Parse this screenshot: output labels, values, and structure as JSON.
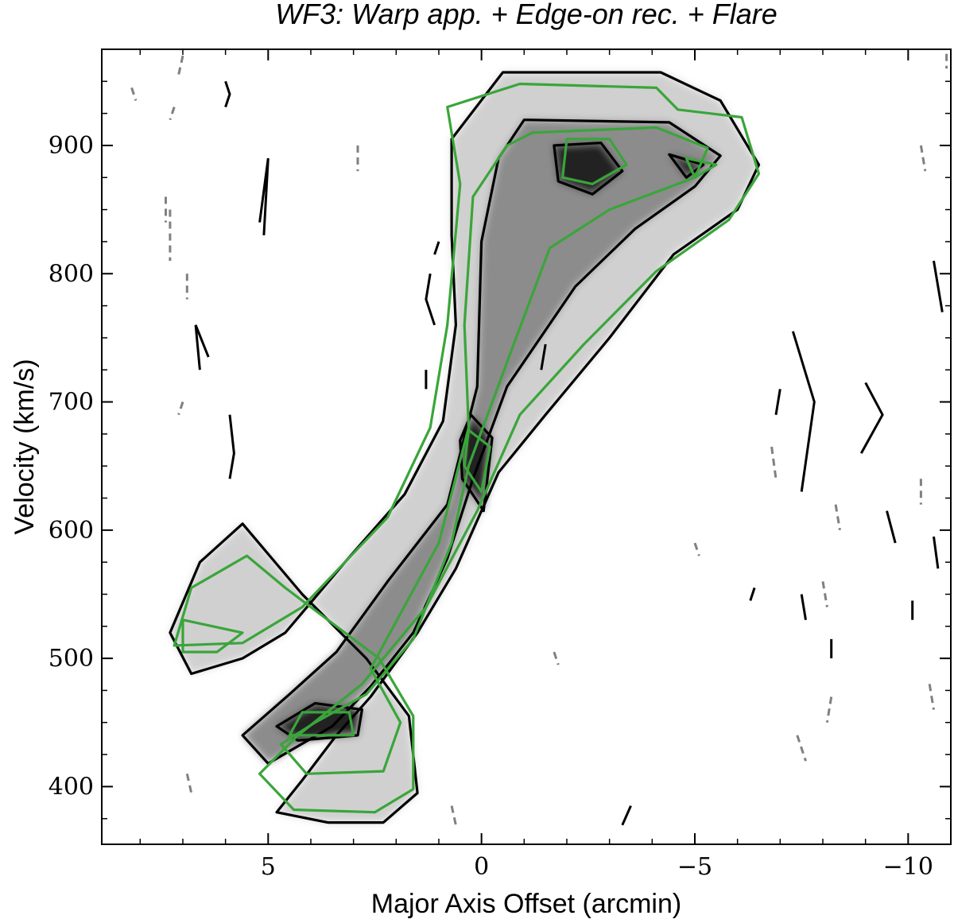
{
  "chart_data": {
    "type": "heatmap",
    "title": "WF3: Warp app. + Edge-on rec. + Flare",
    "xlabel": "Major Axis Offset (arcmin)",
    "ylabel": "Velocity (km/s)",
    "xlim": [
      8.9,
      -11.0
    ],
    "ylim": [
      355,
      975
    ],
    "x_inverted": true,
    "x_major_ticks": [
      5,
      0,
      -5,
      -10
    ],
    "x_tick_labels": [
      "5",
      "0",
      "−5",
      "−10"
    ],
    "x_minor_ticks": [
      8,
      7,
      6,
      4,
      3,
      2,
      1,
      -1,
      -2,
      -3,
      -4,
      -6,
      -7,
      -8,
      -9
    ],
    "y_major_ticks": [
      400,
      500,
      600,
      700,
      800,
      900
    ],
    "y_tick_labels": [
      "400",
      "500",
      "600",
      "700",
      "800",
      "900"
    ],
    "y_minor_ticks": [
      375,
      425,
      450,
      475,
      525,
      550,
      575,
      625,
      650,
      675,
      725,
      750,
      775,
      825,
      850,
      875,
      925,
      950
    ],
    "grid": false,
    "colormap": "greyscale (darker = more emission)",
    "contours": {
      "data_positive": {
        "color": "#000000",
        "style": "solid"
      },
      "data_negative": {
        "color": "#808080",
        "style": "dashed"
      },
      "model": {
        "color": "#3aa53a",
        "style": "solid"
      }
    },
    "data_model_envelope": [
      [
        -0.5,
        957
      ],
      [
        -4.2,
        957
      ],
      [
        -5.6,
        935
      ],
      [
        -6.5,
        885
      ],
      [
        -6.0,
        850
      ],
      [
        -4.5,
        815
      ],
      [
        -3.0,
        750
      ],
      [
        -1.5,
        690
      ],
      [
        -0.4,
        645
      ],
      [
        0.6,
        570
      ],
      [
        1.5,
        520
      ],
      [
        2.6,
        470
      ],
      [
        3.4,
        440
      ],
      [
        4.2,
        405
      ],
      [
        4.8,
        380
      ],
      [
        3.6,
        372
      ],
      [
        2.3,
        372
      ],
      [
        1.5,
        395
      ],
      [
        1.7,
        455
      ],
      [
        2.7,
        500
      ],
      [
        4.2,
        550
      ],
      [
        5.6,
        605
      ],
      [
        6.6,
        575
      ],
      [
        7.3,
        520
      ],
      [
        6.8,
        488
      ],
      [
        5.6,
        500
      ],
      [
        4.6,
        520
      ],
      [
        3.2,
        575
      ],
      [
        1.8,
        628
      ],
      [
        0.9,
        685
      ],
      [
        0.6,
        760
      ],
      [
        0.7,
        830
      ],
      [
        0.7,
        905
      ]
    ],
    "data_model_inner": [
      [
        -1.0,
        920
      ],
      [
        -4.4,
        918
      ],
      [
        -5.6,
        892
      ],
      [
        -5.0,
        868
      ],
      [
        -3.6,
        835
      ],
      [
        -2.2,
        790
      ],
      [
        -0.6,
        712
      ],
      [
        0.2,
        640
      ],
      [
        0.8,
        578
      ],
      [
        1.6,
        520
      ],
      [
        2.6,
        478
      ],
      [
        3.5,
        447
      ],
      [
        5.0,
        418
      ],
      [
        5.6,
        440
      ],
      [
        4.5,
        472
      ],
      [
        3.4,
        505
      ],
      [
        2.2,
        560
      ],
      [
        0.8,
        620
      ],
      [
        0.1,
        712
      ],
      [
        0.0,
        825
      ],
      [
        -0.4,
        890
      ]
    ],
    "data_model_peaks": [
      [
        [
          -1.7,
          900
        ],
        [
          -2.8,
          902
        ],
        [
          -3.3,
          880
        ],
        [
          -2.6,
          862
        ],
        [
          -1.8,
          872
        ]
      ],
      [
        [
          -4.4,
          893
        ],
        [
          -5.2,
          885
        ],
        [
          -4.8,
          875
        ]
      ],
      [
        [
          3.9,
          465
        ],
        [
          2.8,
          460
        ],
        [
          2.9,
          440
        ],
        [
          4.3,
          436
        ],
        [
          4.8,
          447
        ]
      ],
      [
        [
          0.25,
          690
        ],
        [
          -0.25,
          672
        ],
        [
          -0.05,
          615
        ],
        [
          0.45,
          640
        ],
        [
          0.5,
          670
        ]
      ]
    ],
    "model_outer": [
      [
        -0.9,
        948
      ],
      [
        -4.1,
        945
      ],
      [
        -4.6,
        928
      ],
      [
        -6.1,
        922
      ],
      [
        -6.5,
        878
      ],
      [
        -5.8,
        842
      ],
      [
        -4.1,
        802
      ],
      [
        -2.4,
        745
      ],
      [
        -0.9,
        690
      ],
      [
        0.1,
        615
      ],
      [
        1.3,
        540
      ],
      [
        2.8,
        480
      ],
      [
        4.3,
        440
      ],
      [
        5.2,
        410
      ],
      [
        4.4,
        382
      ],
      [
        2.5,
        380
      ],
      [
        1.6,
        398
      ],
      [
        1.6,
        455
      ],
      [
        2.4,
        500
      ],
      [
        4.6,
        555
      ],
      [
        5.5,
        580
      ],
      [
        6.8,
        555
      ],
      [
        7.2,
        510
      ],
      [
        5.6,
        512
      ],
      [
        4.2,
        540
      ],
      [
        2.2,
        610
      ],
      [
        1.2,
        680
      ],
      [
        0.8,
        760
      ],
      [
        0.5,
        870
      ],
      [
        0.8,
        930
      ]
    ],
    "model_inner": [
      [
        -1.2,
        910
      ],
      [
        -4.1,
        914
      ],
      [
        -5.3,
        898
      ],
      [
        -5.0,
        875
      ],
      [
        -3.0,
        850
      ],
      [
        -1.6,
        820
      ],
      [
        -0.7,
        740
      ],
      [
        0.3,
        650
      ],
      [
        0.7,
        590
      ],
      [
        1.6,
        515
      ],
      [
        2.7,
        472
      ],
      [
        3.9,
        450
      ],
      [
        4.7,
        433
      ],
      [
        4.1,
        410
      ],
      [
        2.3,
        412
      ],
      [
        1.9,
        450
      ],
      [
        2.6,
        492
      ],
      [
        1.0,
        590
      ],
      [
        0.3,
        680
      ],
      [
        0.4,
        760
      ],
      [
        0.2,
        860
      ],
      [
        -0.6,
        900
      ]
    ],
    "model_peaks": [
      [
        [
          -2.0,
          905
        ],
        [
          -3.0,
          905
        ],
        [
          -3.4,
          885
        ],
        [
          -2.6,
          870
        ],
        [
          -1.9,
          875
        ]
      ],
      [
        [
          -4.8,
          890
        ],
        [
          -5.5,
          885
        ],
        [
          -5.0,
          875
        ]
      ],
      [
        [
          4.2,
          458
        ],
        [
          3.1,
          458
        ],
        [
          3.0,
          440
        ],
        [
          4.5,
          440
        ]
      ],
      [
        [
          0.3,
          678
        ],
        [
          -0.2,
          665
        ],
        [
          0.0,
          630
        ],
        [
          0.4,
          650
        ]
      ],
      [
        [
          7.0,
          530
        ],
        [
          5.6,
          520
        ],
        [
          6.2,
          505
        ],
        [
          7.0,
          505
        ]
      ]
    ],
    "noise_contours": [
      {
        "sign": "pos",
        "points": [
          [
            6.0,
            950
          ],
          [
            5.9,
            940
          ],
          [
            6.0,
            930
          ]
        ]
      },
      {
        "sign": "pos",
        "points": [
          [
            5.2,
            840
          ],
          [
            5.0,
            890
          ],
          [
            5.1,
            830
          ]
        ]
      },
      {
        "sign": "pos",
        "points": [
          [
            6.4,
            735
          ],
          [
            6.7,
            760
          ],
          [
            6.6,
            725
          ]
        ]
      },
      {
        "sign": "pos",
        "points": [
          [
            5.9,
            690
          ],
          [
            5.8,
            660
          ],
          [
            5.9,
            640
          ]
        ]
      },
      {
        "sign": "pos",
        "points": [
          [
            1.2,
            800
          ],
          [
            1.3,
            780
          ],
          [
            1.1,
            760
          ]
        ]
      },
      {
        "sign": "pos",
        "points": [
          [
            1.3,
            725
          ],
          [
            1.3,
            710
          ]
        ]
      },
      {
        "sign": "pos",
        "points": [
          [
            1.0,
            825
          ],
          [
            1.1,
            815
          ]
        ]
      },
      {
        "sign": "pos",
        "points": [
          [
            -1.5,
            745
          ],
          [
            -1.4,
            725
          ]
        ]
      },
      {
        "sign": "pos",
        "points": [
          [
            -7.3,
            755
          ],
          [
            -7.8,
            700
          ],
          [
            -7.5,
            630
          ]
        ]
      },
      {
        "sign": "pos",
        "points": [
          [
            -9.0,
            715
          ],
          [
            -9.4,
            690
          ],
          [
            -8.9,
            660
          ]
        ]
      },
      {
        "sign": "pos",
        "points": [
          [
            -7.0,
            710
          ],
          [
            -6.9,
            690
          ]
        ]
      },
      {
        "sign": "pos",
        "points": [
          [
            -10.6,
            810
          ],
          [
            -10.8,
            770
          ]
        ]
      },
      {
        "sign": "pos",
        "points": [
          [
            -6.4,
            555
          ],
          [
            -6.3,
            545
          ]
        ]
      },
      {
        "sign": "pos",
        "points": [
          [
            -3.5,
            385
          ],
          [
            -3.3,
            370
          ]
        ]
      },
      {
        "sign": "pos",
        "points": [
          [
            -8.2,
            515
          ],
          [
            -8.2,
            500
          ]
        ]
      },
      {
        "sign": "pos",
        "points": [
          [
            -10.1,
            545
          ],
          [
            -10.1,
            530
          ]
        ]
      },
      {
        "sign": "pos",
        "points": [
          [
            -9.5,
            615
          ],
          [
            -9.7,
            590
          ]
        ]
      },
      {
        "sign": "pos",
        "points": [
          [
            -10.6,
            595
          ],
          [
            -10.7,
            570
          ]
        ]
      },
      {
        "sign": "pos",
        "points": [
          [
            -7.5,
            550
          ],
          [
            -7.6,
            530
          ]
        ]
      },
      {
        "sign": "neg",
        "points": [
          [
            7.0,
            970
          ],
          [
            7.1,
            955
          ]
        ]
      },
      {
        "sign": "neg",
        "points": [
          [
            8.2,
            945
          ],
          [
            8.1,
            935
          ]
        ]
      },
      {
        "sign": "neg",
        "points": [
          [
            7.2,
            930
          ],
          [
            7.3,
            920
          ]
        ]
      },
      {
        "sign": "neg",
        "points": [
          [
            7.3,
            850
          ],
          [
            7.3,
            810
          ]
        ]
      },
      {
        "sign": "neg",
        "points": [
          [
            6.9,
            800
          ],
          [
            6.9,
            780
          ]
        ]
      },
      {
        "sign": "neg",
        "points": [
          [
            7.4,
            860
          ],
          [
            7.4,
            840
          ]
        ]
      },
      {
        "sign": "neg",
        "points": [
          [
            7.0,
            700
          ],
          [
            7.1,
            690
          ]
        ]
      },
      {
        "sign": "neg",
        "points": [
          [
            2.9,
            900
          ],
          [
            2.9,
            880
          ]
        ]
      },
      {
        "sign": "neg",
        "points": [
          [
            -10.9,
            990
          ],
          [
            -10.9,
            960
          ]
        ]
      },
      {
        "sign": "neg",
        "points": [
          [
            -10.3,
            640
          ],
          [
            -10.3,
            620
          ]
        ]
      },
      {
        "sign": "neg",
        "points": [
          [
            -6.8,
            665
          ],
          [
            -6.9,
            640
          ]
        ]
      },
      {
        "sign": "neg",
        "points": [
          [
            -8.3,
            620
          ],
          [
            -8.4,
            600
          ]
        ]
      },
      {
        "sign": "neg",
        "points": [
          [
            -8.0,
            560
          ],
          [
            -8.1,
            540
          ]
        ]
      },
      {
        "sign": "neg",
        "points": [
          [
            -8.2,
            470
          ],
          [
            -8.1,
            450
          ]
        ]
      },
      {
        "sign": "neg",
        "points": [
          [
            -10.5,
            480
          ],
          [
            -10.6,
            460
          ]
        ]
      },
      {
        "sign": "neg",
        "points": [
          [
            -7.4,
            440
          ],
          [
            -7.6,
            420
          ]
        ]
      },
      {
        "sign": "neg",
        "points": [
          [
            6.9,
            410
          ],
          [
            6.8,
            395
          ]
        ]
      },
      {
        "sign": "neg",
        "points": [
          [
            0.7,
            385
          ],
          [
            0.6,
            370
          ]
        ]
      },
      {
        "sign": "neg",
        "points": [
          [
            -1.7,
            505
          ],
          [
            -1.8,
            495
          ]
        ]
      },
      {
        "sign": "neg",
        "points": [
          [
            -10.3,
            900
          ],
          [
            -10.4,
            880
          ]
        ]
      },
      {
        "sign": "neg",
        "points": [
          [
            -5.0,
            590
          ],
          [
            -5.1,
            580
          ]
        ]
      }
    ]
  }
}
